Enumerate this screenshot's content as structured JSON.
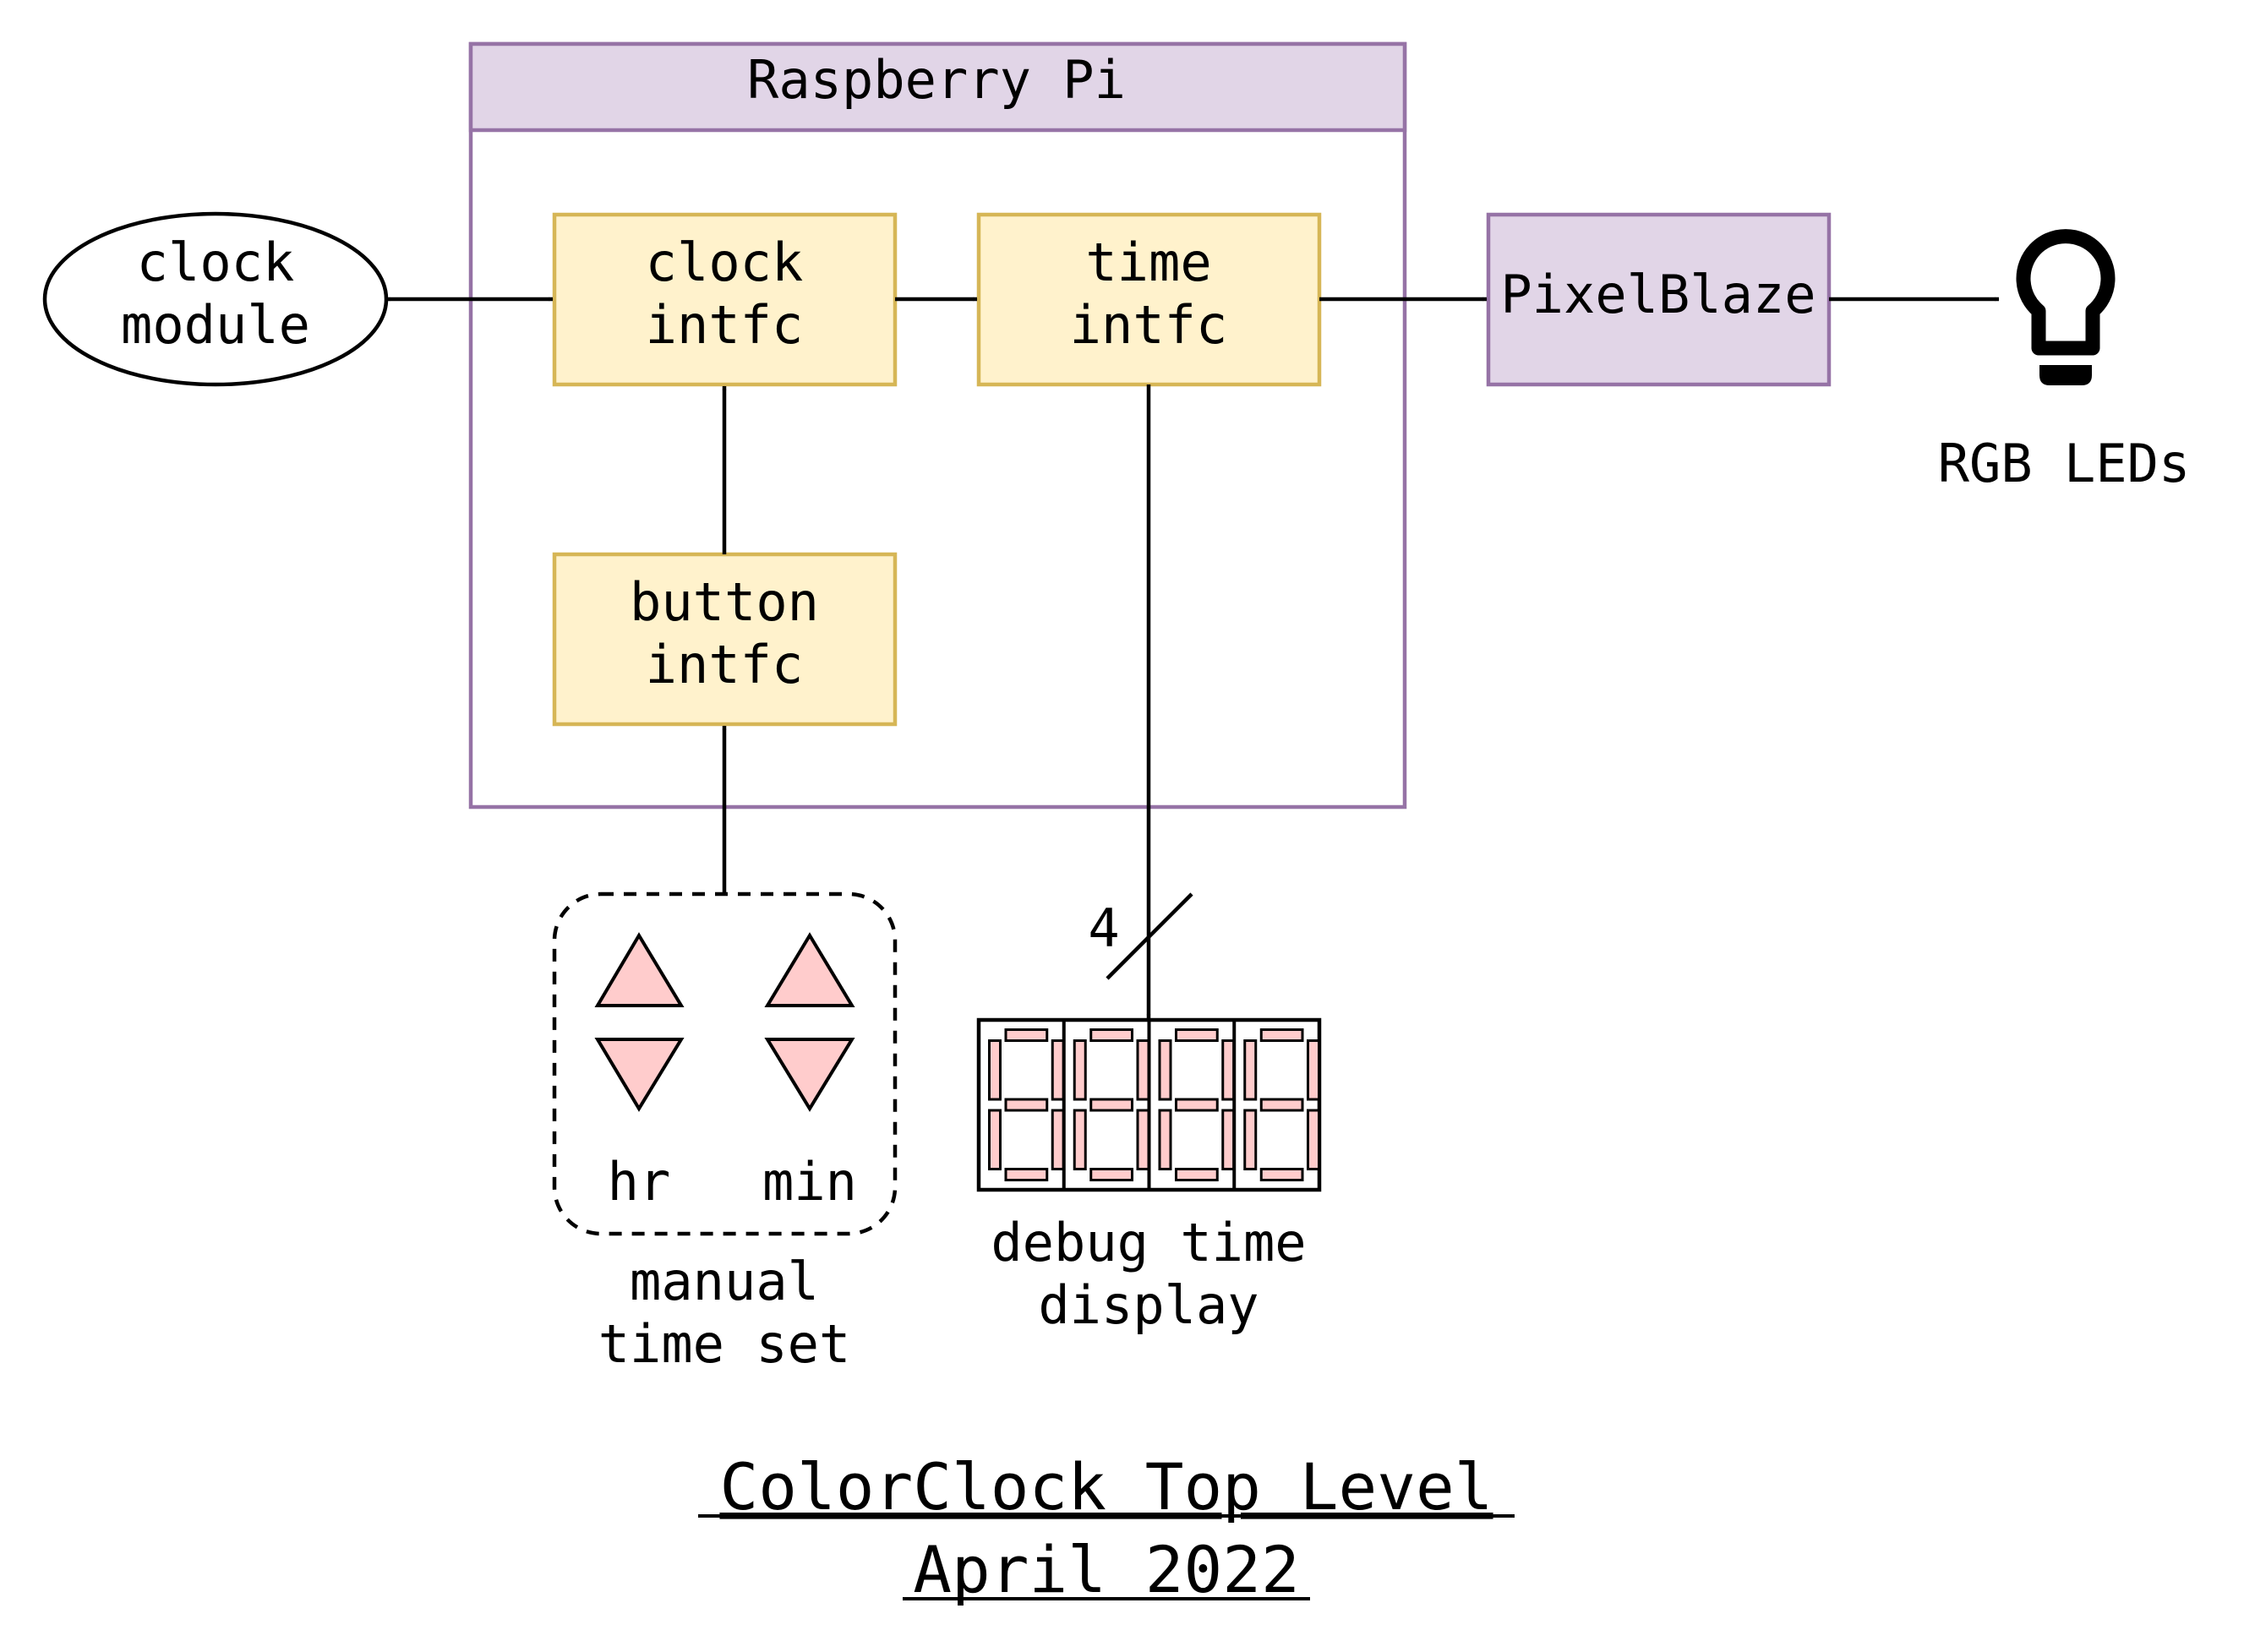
{
  "rpi": {
    "title": "Raspberry Pi"
  },
  "clock_module": {
    "line1": "clock",
    "line2": "module"
  },
  "clock_intfc": {
    "line1": "clock",
    "line2": "intfc"
  },
  "time_intfc": {
    "line1": "time",
    "line2": "intfc"
  },
  "button_intfc": {
    "line1": "button",
    "line2": "intfc"
  },
  "pixelblaze": {
    "label": "PixelBlaze"
  },
  "rgb_leds": {
    "label": "RGB LEDs",
    "icon": "lightbulb-icon"
  },
  "bus": {
    "width_label": "4"
  },
  "manual_set": {
    "hr_label": "hr",
    "min_label": "min",
    "caption_line1": "manual",
    "caption_line2": "time set"
  },
  "debug_display": {
    "caption_line1": "debug time",
    "caption_line2": "display",
    "digits": 4
  },
  "footer": {
    "title": "ColorClock Top Level",
    "date": "April 2022"
  },
  "colors": {
    "block_fill": "#fff2cc",
    "block_stroke": "#d6b656",
    "rpi_fill": "#e1d5e7",
    "rpi_stroke": "#9673a6",
    "button_fill": "#ffcccc"
  }
}
